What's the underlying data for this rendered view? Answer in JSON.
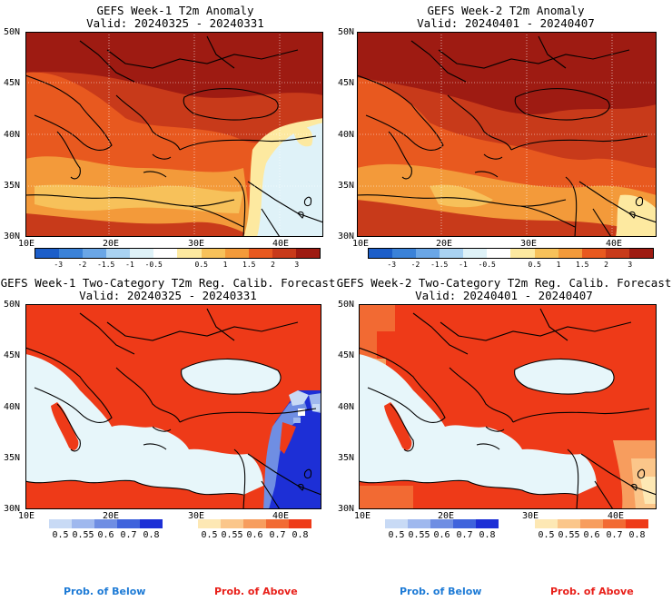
{
  "panels": [
    {
      "title": "GEFS Week-1 T2m Anomaly",
      "valid": "Valid: 20240325 - 20240331"
    },
    {
      "title": "GEFS Week-2 T2m Anomaly",
      "valid": "Valid: 20240401 - 20240407"
    },
    {
      "title": "GEFS Week-1 Two-Category T2m Reg. Calib. Forecast",
      "valid": "Valid: 20240325 - 20240331"
    },
    {
      "title": "GEFS Week-2 Two-Category T2m Reg. Calib. Forecast",
      "valid": "Valid: 20240401 - 20240407"
    }
  ],
  "map_axes": {
    "lat_labels": [
      "50N",
      "45N",
      "40N",
      "35N",
      "30N"
    ],
    "lon_labels": [
      "10E",
      "20E",
      "30E",
      "40E"
    ]
  },
  "anomaly_colorbar": {
    "labels": [
      "-3",
      "-2",
      "-1.5",
      "-1",
      "-0.5",
      "0.5",
      "1",
      "1.5",
      "2",
      "3"
    ],
    "colors": [
      "#1c5ec9",
      "#3b82d8",
      "#6aa6e6",
      "#a9d2f2",
      "#dff2f8",
      "#ffffff",
      "#fde9a0",
      "#f7c15a",
      "#f39a3a",
      "#e8591f",
      "#c83a1a",
      "#9e1b12"
    ]
  },
  "prob_below_bar": {
    "labels": [
      "0.5",
      "0.55",
      "0.6",
      "0.7",
      "0.8"
    ],
    "colors": [
      "#c8daf5",
      "#9fb8ee",
      "#6f8ee3",
      "#3f63dc",
      "#1d2fd6"
    ]
  },
  "prob_above_bar": {
    "labels": [
      "0.5",
      "0.55",
      "0.6",
      "0.7",
      "0.8"
    ],
    "colors": [
      "#fde8b4",
      "#fbc68a",
      "#f79d5e",
      "#f26a33",
      "#ee3a18"
    ]
  },
  "footer": {
    "below_left": "Prob. of Below",
    "above_left": "Prob. of Above",
    "below_right": "Prob. of Below",
    "above_right": "Prob. of Above"
  }
}
